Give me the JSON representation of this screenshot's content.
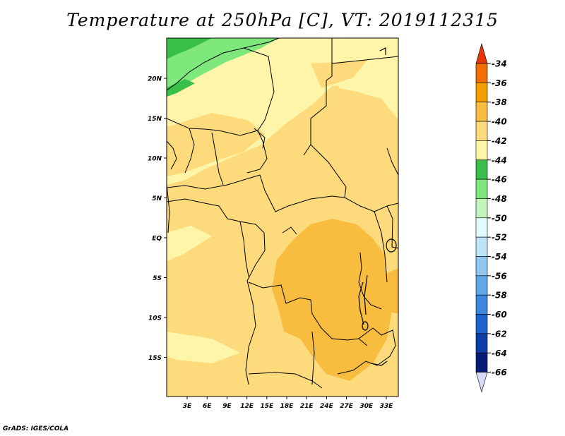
{
  "title": "Temperature at 250hPa [C], VT: 2019112315",
  "credit": "GrADS: IGES/COLA",
  "map": {
    "lat_labels": [
      "20N",
      "15N",
      "10N",
      "5N",
      "EQ",
      "5S",
      "10S",
      "15S"
    ],
    "lon_labels": [
      "3E",
      "6E",
      "9E",
      "12E",
      "15E",
      "18E",
      "21E",
      "24E",
      "27E",
      "30E",
      "33E"
    ],
    "field": {
      "background_level": "-42 to -40",
      "northwest_levels": [
        "-44 to -42",
        "-46 to -44"
      ],
      "warm_core_level": "-40 to -38",
      "warm_core_region": "Congo Basin to Zambia"
    }
  },
  "colorbar": {
    "labels": [
      "-34",
      "-36",
      "-38",
      "-40",
      "-42",
      "-44",
      "-46",
      "-48",
      "-50",
      "-52",
      "-54",
      "-56",
      "-58",
      "-60",
      "-62",
      "-64",
      "-66"
    ],
    "colors": [
      "#e8360b",
      "#f06f00",
      "#f59e00",
      "#f8bc3e",
      "#fddb7c",
      "#fff5a8",
      "#38c04a",
      "#7ee87d",
      "#c1f5bb",
      "#e2fbff",
      "#bde4f8",
      "#91c7f1",
      "#5fa8e8",
      "#3c88e0",
      "#1c63d1",
      "#0c3eaa",
      "#061a78",
      "#d7d9f5"
    ]
  },
  "colors": {
    "background": "#ffffff",
    "map_base": "#fddb7c",
    "pale": "#fff5a8",
    "warm": "#f8bc3e",
    "green_dark": "#38c04a",
    "green_light": "#7ee87d"
  }
}
